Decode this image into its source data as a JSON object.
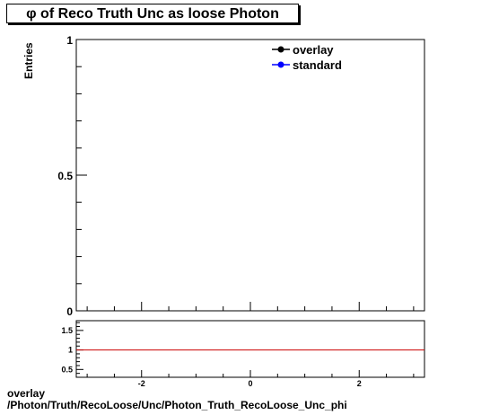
{
  "chart_data": [
    {
      "type": "line",
      "title": "φ of Reco Truth Unc as loose Photon",
      "xlabel": "",
      "ylabel": "Entries",
      "xlim": [
        -3.2,
        3.2
      ],
      "ylim": [
        0,
        1
      ],
      "yticks": [
        "0",
        "0.5",
        "1"
      ],
      "legend": "top-right",
      "series": [
        {
          "name": "overlay",
          "color": "#000000",
          "values": []
        },
        {
          "name": "standard",
          "color": "#0000ff",
          "values": []
        }
      ]
    },
    {
      "type": "line",
      "title": "",
      "xlabel": "",
      "ylabel": "",
      "xlim": [
        -3.2,
        3.2
      ],
      "ylim": [
        0.3,
        1.75
      ],
      "xticks": [
        "-2",
        "0",
        "2"
      ],
      "yticks": [
        "0.5",
        "1",
        "1.5"
      ],
      "reference_line": {
        "y": 1,
        "color": "#cc0000"
      }
    }
  ],
  "footer": {
    "line1": "overlay",
    "line2": "/Photon/Truth/RecoLoose/Unc/Photon_Truth_RecoLoose_Unc_phi"
  }
}
